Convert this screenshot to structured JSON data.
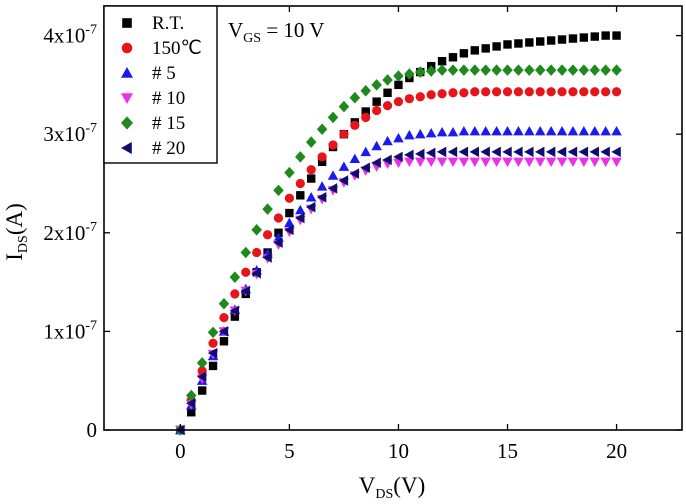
{
  "chart_data": {
    "type": "scatter",
    "xlabel": {
      "main": "V",
      "sub": "DS",
      "rest": "(V)"
    },
    "ylabel": {
      "main": "I",
      "sub": "DS",
      "rest": "(A)"
    },
    "xlim": [
      -3.5,
      23
    ],
    "ylim": [
      0,
      4.3e-07
    ],
    "xticks": [
      0,
      5,
      10,
      15,
      20
    ],
    "xtick_labels": [
      "0",
      "5",
      "10",
      "15",
      "20"
    ],
    "yticks": [
      0,
      1e-07,
      2e-07,
      3e-07,
      4e-07
    ],
    "ytick_labels": [
      {
        "mant": "0",
        "exp": ""
      },
      {
        "mant": "1x10",
        "exp": "-7"
      },
      {
        "mant": "2x10",
        "exp": "-7"
      },
      {
        "mant": "3x10",
        "exp": "-7"
      },
      {
        "mant": "4x10",
        "exp": "-7"
      }
    ],
    "annotation": {
      "main": "V",
      "sub": "GS",
      "rest": " = 10 V"
    },
    "x": [
      0,
      0.5,
      1,
      1.5,
      2,
      2.5,
      3,
      3.5,
      4,
      4.5,
      5,
      5.5,
      6,
      6.5,
      7,
      7.5,
      8,
      8.5,
      9,
      9.5,
      10,
      10.5,
      11,
      11.5,
      12,
      12.5,
      13,
      13.5,
      14,
      14.5,
      15,
      15.5,
      16,
      16.5,
      17,
      17.5,
      18,
      18.5,
      19,
      19.5,
      20
    ],
    "legend_position": "top-left",
    "series": [
      {
        "name": "R.T.",
        "marker": "square",
        "color": "#000000",
        "values": [
          0,
          1.8e-08,
          4e-08,
          6.5e-08,
          9e-08,
          1.15e-07,
          1.38e-07,
          1.6e-07,
          1.8e-07,
          2e-07,
          2.2e-07,
          2.38e-07,
          2.55e-07,
          2.72e-07,
          2.87e-07,
          3e-07,
          3.12e-07,
          3.23e-07,
          3.33e-07,
          3.42e-07,
          3.5e-07,
          3.57e-07,
          3.63e-07,
          3.69e-07,
          3.74e-07,
          3.78e-07,
          3.82e-07,
          3.85e-07,
          3.87e-07,
          3.89e-07,
          3.91e-07,
          3.92e-07,
          3.93e-07,
          3.94e-07,
          3.95e-07,
          3.96e-07,
          3.97e-07,
          3.98e-07,
          3.99e-07,
          4e-07,
          4e-07
        ]
      },
      {
        "name": "150℃",
        "marker": "circle",
        "color": "#e8141b",
        "values": [
          0,
          3e-08,
          6e-08,
          8.8e-08,
          1.14e-07,
          1.38e-07,
          1.6e-07,
          1.8e-07,
          1.98e-07,
          2.15e-07,
          2.35e-07,
          2.5e-07,
          2.64e-07,
          2.77e-07,
          2.89e-07,
          3e-07,
          3.09e-07,
          3.17e-07,
          3.24e-07,
          3.29e-07,
          3.33e-07,
          3.36e-07,
          3.38e-07,
          3.4e-07,
          3.41e-07,
          3.42e-07,
          3.42e-07,
          3.43e-07,
          3.43e-07,
          3.43e-07,
          3.43e-07,
          3.43e-07,
          3.43e-07,
          3.43e-07,
          3.43e-07,
          3.43e-07,
          3.43e-07,
          3.43e-07,
          3.43e-07,
          3.43e-07,
          3.43e-07
        ]
      },
      {
        "name": "# 5",
        "marker": "triangle-up",
        "color": "#1b1bf0",
        "values": [
          0,
          2.5e-08,
          5e-08,
          7.5e-08,
          1e-07,
          1.22e-07,
          1.43e-07,
          1.62e-07,
          1.79e-07,
          1.95e-07,
          2.1e-07,
          2.23e-07,
          2.36e-07,
          2.47e-07,
          2.58e-07,
          2.67e-07,
          2.75e-07,
          2.82e-07,
          2.88e-07,
          2.93e-07,
          2.96e-07,
          2.99e-07,
          3e-07,
          3.01e-07,
          3.02e-07,
          3.02e-07,
          3.03e-07,
          3.03e-07,
          3.03e-07,
          3.03e-07,
          3.03e-07,
          3.03e-07,
          3.03e-07,
          3.03e-07,
          3.03e-07,
          3.03e-07,
          3.03e-07,
          3.03e-07,
          3.03e-07,
          3.03e-07,
          3.03e-07
        ]
      },
      {
        "name": "# 10",
        "marker": "triangle-down",
        "color": "#ee2ee8",
        "values": [
          0,
          2.6e-08,
          5.2e-08,
          7.7e-08,
          1e-07,
          1.21e-07,
          1.41e-07,
          1.58e-07,
          1.74e-07,
          1.88e-07,
          2.01e-07,
          2.13e-07,
          2.24e-07,
          2.34e-07,
          2.43e-07,
          2.51e-07,
          2.58e-07,
          2.63e-07,
          2.67e-07,
          2.7e-07,
          2.71e-07,
          2.72e-07,
          2.72e-07,
          2.72e-07,
          2.72e-07,
          2.72e-07,
          2.72e-07,
          2.72e-07,
          2.72e-07,
          2.72e-07,
          2.72e-07,
          2.72e-07,
          2.72e-07,
          2.72e-07,
          2.72e-07,
          2.72e-07,
          2.72e-07,
          2.72e-07,
          2.72e-07,
          2.72e-07,
          2.72e-07
        ]
      },
      {
        "name": "# 15",
        "marker": "diamond",
        "color": "#1e8a1e",
        "values": [
          0,
          3.5e-08,
          6.8e-08,
          9.9e-08,
          1.28e-07,
          1.55e-07,
          1.8e-07,
          2.03e-07,
          2.24e-07,
          2.43e-07,
          2.61e-07,
          2.77e-07,
          2.92e-07,
          3.05e-07,
          3.17e-07,
          3.28e-07,
          3.37e-07,
          3.44e-07,
          3.5e-07,
          3.55e-07,
          3.59e-07,
          3.61e-07,
          3.63e-07,
          3.64e-07,
          3.65e-07,
          3.65e-07,
          3.65e-07,
          3.65e-07,
          3.65e-07,
          3.65e-07,
          3.65e-07,
          3.65e-07,
          3.65e-07,
          3.65e-07,
          3.65e-07,
          3.65e-07,
          3.65e-07,
          3.65e-07,
          3.65e-07,
          3.65e-07,
          3.65e-07
        ]
      },
      {
        "name": "# 20",
        "marker": "triangle-left",
        "color": "#0e0e6e",
        "values": [
          0,
          2.7e-08,
          5.4e-08,
          7.8e-08,
          1e-07,
          1.21e-07,
          1.41e-07,
          1.59e-07,
          1.75e-07,
          1.9e-07,
          2.03e-07,
          2.15e-07,
          2.26e-07,
          2.36e-07,
          2.45e-07,
          2.53e-07,
          2.6e-07,
          2.66e-07,
          2.71e-07,
          2.74e-07,
          2.77e-07,
          2.79e-07,
          2.8e-07,
          2.81e-07,
          2.82e-07,
          2.82e-07,
          2.82e-07,
          2.82e-07,
          2.82e-07,
          2.82e-07,
          2.82e-07,
          2.82e-07,
          2.82e-07,
          2.82e-07,
          2.82e-07,
          2.82e-07,
          2.82e-07,
          2.82e-07,
          2.82e-07,
          2.82e-07,
          2.82e-07
        ]
      }
    ]
  }
}
